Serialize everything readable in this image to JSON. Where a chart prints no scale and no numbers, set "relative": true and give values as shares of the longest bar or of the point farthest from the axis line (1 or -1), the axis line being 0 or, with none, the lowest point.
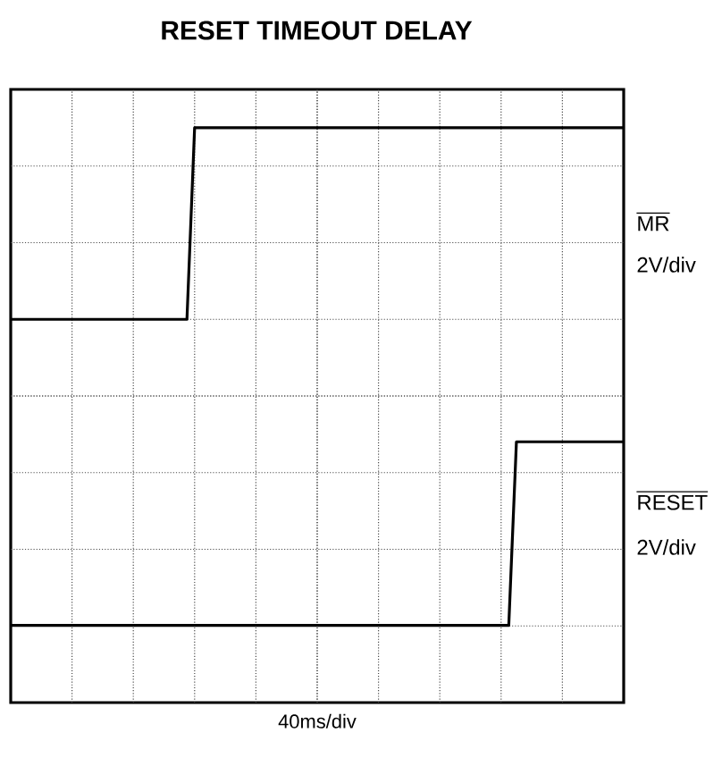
{
  "chart_data": {
    "type": "line",
    "title": "RESET TIMEOUT DELAY",
    "xlabel": "40ms/div",
    "relative": true,
    "grid": true,
    "legend": "right",
    "categories": [
      null,
      null,
      null,
      null,
      null,
      null,
      null,
      null,
      null,
      null,
      null,
      null,
      null,
      null,
      null,
      null,
      null,
      null,
      null,
      null,
      null,
      null,
      null,
      null,
      null,
      null,
      null,
      null,
      null,
      null,
      null,
      null,
      null,
      null,
      null,
      null,
      null,
      null,
      null,
      null,
      null,
      null,
      null,
      null,
      null,
      null,
      null,
      null,
      null,
      null,
      null,
      null,
      null,
      null,
      null,
      null,
      null,
      null,
      null,
      null,
      null,
      null,
      null,
      null,
      null,
      null,
      null,
      null,
      null,
      null,
      null,
      null,
      null,
      null,
      null,
      null,
      null,
      null,
      null,
      null,
      null
    ],
    "series": [
      {
        "name": "MR",
        "color": "#000000",
        "values": [
          0.615,
          0.615,
          0.615,
          0.615,
          0.615,
          0.615,
          0.615,
          0.615,
          0.615,
          0.615,
          0.615,
          0.615,
          0.615,
          0.615,
          0.615,
          0.615,
          0.615,
          0.615,
          0.615,
          0.615,
          0.615,
          0.615,
          0.615,
          0.615,
          1,
          1,
          1,
          1,
          1,
          1,
          1,
          1,
          1,
          1,
          1,
          1,
          1,
          1,
          1,
          1,
          1,
          1,
          1,
          1,
          1,
          1,
          1,
          1,
          1,
          1,
          1,
          1,
          1,
          1,
          1,
          1,
          1,
          1,
          1,
          1,
          1,
          1,
          1,
          1,
          1,
          1,
          1,
          1,
          1,
          1,
          1,
          1,
          1,
          1,
          1,
          1,
          1,
          1,
          1,
          1,
          1
        ]
      },
      {
        "name": "RESET",
        "color": "#000000",
        "values": [
          0,
          0,
          0,
          0,
          0,
          0,
          0,
          0,
          0,
          0,
          0,
          0,
          0,
          0,
          0,
          0,
          0,
          0,
          0,
          0,
          0,
          0,
          0,
          0,
          0,
          0,
          0,
          0,
          0,
          0,
          0,
          0,
          0,
          0,
          0,
          0,
          0,
          0,
          0,
          0,
          0,
          0,
          0,
          0,
          0,
          0,
          0,
          0,
          0,
          0,
          0,
          0,
          0,
          0,
          0,
          0,
          0,
          0,
          0,
          0,
          0,
          0,
          0,
          0,
          0,
          0,
          0.369,
          0.369,
          0.369,
          0.369,
          0.369,
          0.369,
          0.369,
          0.369,
          0.369,
          0.369,
          0.369,
          0.369,
          0.369,
          0.369,
          0.369
        ]
      }
    ],
    "annotations": [
      "2V/div",
      "2V/div"
    ]
  }
}
